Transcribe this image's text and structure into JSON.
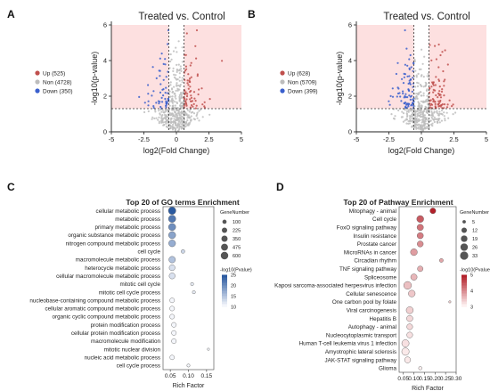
{
  "colors": {
    "up": "#c0504d",
    "non": "#bdbdbd",
    "down": "#3a5fcd",
    "shade": "#fde0e0",
    "bubble_blue_dark": "#2b5aa0",
    "bubble_red_dark": "#b3202a"
  },
  "chart_data": [
    {
      "panel": "A",
      "type": "scatter",
      "title": "Treated vs. Control",
      "xlabel": "log2(Fold Change)",
      "ylabel": "-log10(p-value)",
      "xlim": [
        -5,
        5
      ],
      "ylim": [
        0,
        6
      ],
      "x_ticks": [
        "-5",
        "-2.5",
        "0",
        "2.5",
        "5"
      ],
      "y_ticks": [
        "0",
        "2",
        "4",
        "6"
      ],
      "legend_position": "left",
      "legend": [
        {
          "name": "Up (525)",
          "color_key": "up"
        },
        {
          "name": "Non (4728)",
          "color_key": "non"
        },
        {
          "name": "Down (350)",
          "color_key": "down"
        }
      ],
      "thresholds": {
        "fold_change": [
          -0.58,
          0.58
        ],
        "p_value": 1.3
      }
    },
    {
      "panel": "B",
      "type": "scatter",
      "title": "Treated vs. Control",
      "xlabel": "log2(Fold Change)",
      "ylabel": "-log10(p-value)",
      "xlim": [
        -5,
        5
      ],
      "ylim": [
        0,
        6
      ],
      "x_ticks": [
        "-5",
        "-2.5",
        "0",
        "2.5",
        "5"
      ],
      "y_ticks": [
        "0",
        "2",
        "4",
        "6"
      ],
      "legend_position": "left",
      "legend": [
        {
          "name": "Up (628)",
          "color_key": "up"
        },
        {
          "name": "Non (5709)",
          "color_key": "non"
        },
        {
          "name": "Down (399)",
          "color_key": "down"
        }
      ],
      "thresholds": {
        "fold_change": [
          -0.58,
          0.58
        ],
        "p_value": 1.3
      }
    },
    {
      "panel": "C",
      "type": "scatter",
      "subtype": "bubble",
      "title": "Top 20 of GO terms Enrichment",
      "xlabel": "Rich Factor",
      "xlim": [
        0.03,
        0.17
      ],
      "x_ticks": [
        "0.05",
        "0.10",
        "0.15"
      ],
      "size_legend_title": "GeneNumber",
      "size_legend": [
        "100",
        "225",
        "350",
        "475",
        "600"
      ],
      "color_legend_title": "-log10(Pvalue)",
      "color_legend": [
        "25",
        "20",
        "15",
        "10"
      ],
      "terms": [
        "cellular metabolic process",
        "metabolic process",
        "primary metabolic process",
        "organic substance metabolic process",
        "nitrogen compound metabolic process",
        "cell cycle",
        "macromolecule metabolic process",
        "heterocycle metabolic process",
        "cellular macromolecule metabolic process",
        "mitotic cell cycle",
        "mitotic cell cycle process",
        "nucleobase-containing compound metabolic process",
        "cellular aromatic compound metabolic process",
        "organic cyclic compound metabolic process",
        "protein modification process",
        "cellular protein modification process",
        "macromolecule modification",
        "mitotic nuclear division",
        "nucleic acid metabolic process",
        "cell cycle process"
      ],
      "rich_factor": [
        0.055,
        0.055,
        0.055,
        0.055,
        0.055,
        0.085,
        0.055,
        0.055,
        0.055,
        0.11,
        0.115,
        0.055,
        0.055,
        0.055,
        0.06,
        0.06,
        0.06,
        0.155,
        0.055,
        0.1
      ],
      "gene_number": [
        600,
        560,
        540,
        520,
        480,
        60,
        420,
        300,
        320,
        40,
        40,
        160,
        160,
        160,
        160,
        160,
        160,
        25,
        140,
        40
      ],
      "neg_log10_p": [
        25,
        22,
        20,
        18,
        17,
        13,
        15,
        12,
        12,
        11,
        11,
        10,
        10,
        10,
        10,
        10,
        10,
        10,
        10,
        10
      ]
    },
    {
      "panel": "D",
      "type": "scatter",
      "subtype": "bubble",
      "title": "Top 20 of Pathway Enrichment",
      "xlabel": "Rich Factor",
      "xlim": [
        0.03,
        0.3
      ],
      "x_ticks": [
        "0.05",
        "0.10",
        "0.15",
        "0.20",
        "0.25",
        "0.30"
      ],
      "size_legend_title": "GeneNumber",
      "size_legend": [
        "5",
        "12",
        "19",
        "26",
        "33"
      ],
      "color_legend_title": "-log10(Pvalue)",
      "color_legend": [
        "5",
        "4",
        "3"
      ],
      "terms": [
        "Mitophagy - animal",
        "Cell cycle",
        "FoxO signaling pathway",
        "Insulin resistance",
        "Prostate cancer",
        "MicroRNAs in cancer",
        "Circadian rhythm",
        "TNF signaling pathway",
        "Spliceosome",
        "Kaposi sarcoma-associated herpesvirus infection",
        "Cellular senescence",
        "One carbon pool by folate",
        "Viral carcinogenesis",
        "Hepatitis B",
        "Autophagy - animal",
        "Nucleocytoplasmic transport",
        "Human T-cell leukemia virus 1 infection",
        "Amyotrophic lateral sclerosis",
        "JAK-STAT signaling pathway",
        "Glioma"
      ],
      "rich_factor": [
        0.19,
        0.13,
        0.13,
        0.13,
        0.13,
        0.1,
        0.23,
        0.13,
        0.1,
        0.07,
        0.09,
        0.27,
        0.08,
        0.08,
        0.08,
        0.08,
        0.06,
        0.06,
        0.07,
        0.13
      ],
      "gene_number": [
        14,
        22,
        18,
        17,
        16,
        21,
        6,
        13,
        18,
        29,
        21,
        4,
        23,
        17,
        15,
        15,
        25,
        26,
        16,
        5
      ],
      "neg_log10_p": [
        5.5,
        4.8,
        4.5,
        4.4,
        4.2,
        4.0,
        3.9,
        3.8,
        3.7,
        3.6,
        3.5,
        3.4,
        3.4,
        3.3,
        3.3,
        3.2,
        3.2,
        3.1,
        3.1,
        3.0
      ]
    }
  ]
}
